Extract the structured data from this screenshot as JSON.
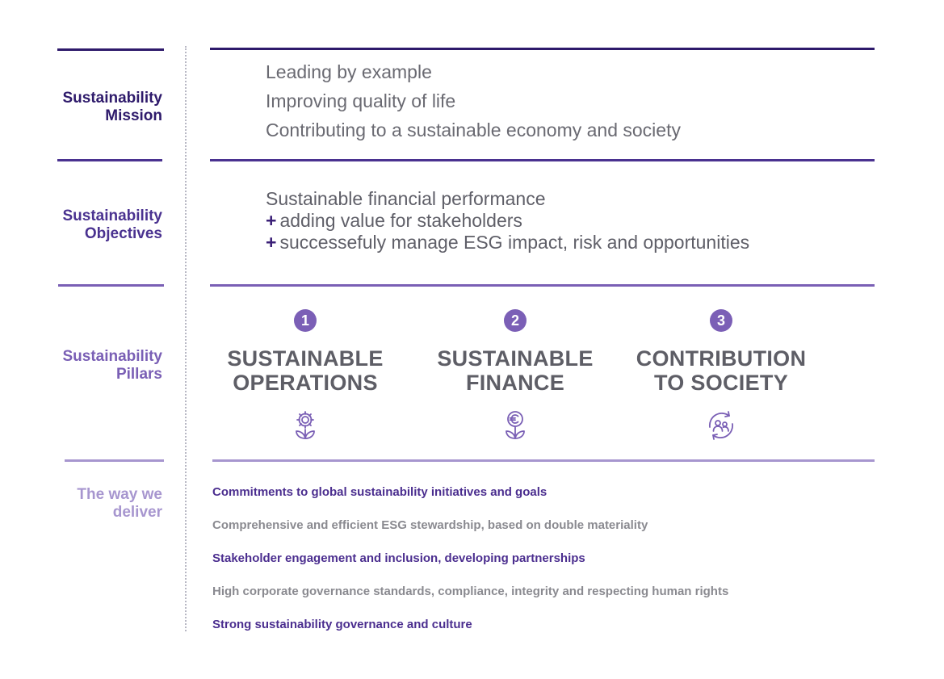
{
  "colors": {
    "dark_purple": "#3b1f7a",
    "mid_purple": "#5a3f9b",
    "purple": "#7a5fb5",
    "light_purple": "#a796cf",
    "gray_text": "#6a6a72",
    "deliver_purple": "#4b2e8f",
    "deliver_gray": "#8a8a90"
  },
  "sections": {
    "mission": {
      "label": "Sustainability\nMission",
      "lines": [
        "Leading by example",
        "Improving quality of life",
        "Contributing to a sustainable economy and society"
      ]
    },
    "objectives": {
      "label": "Sustainability\nObjectives",
      "line1": "Sustainable financial performance",
      "plus_symbol": "+",
      "line2": "adding value for stakeholders",
      "line3": "successefuly manage ESG impact, risk and opportunities"
    },
    "pillars": {
      "label": "Sustainability\nPillars",
      "items": [
        {
          "number": "1",
          "title": "SUSTAINABLE\nOPERATIONS",
          "icon": "gear-plant-icon"
        },
        {
          "number": "2",
          "title": "SUSTAINABLE\nFINANCE",
          "icon": "euro-plant-icon"
        },
        {
          "number": "3",
          "title": "CONTRIBUTION\nTO SOCIETY",
          "icon": "people-cycle-icon"
        }
      ]
    },
    "deliver": {
      "label": "The way we\ndeliver",
      "items": [
        "Commitments to global sustainability initiatives and goals",
        "Comprehensive and efficient ESG stewardship, based on double materiality",
        "Stakeholder engagement and inclusion, developing partnerships",
        "High corporate governance standards, compliance, integrity and respecting human rights",
        "Strong sustainability governance and culture"
      ]
    }
  }
}
